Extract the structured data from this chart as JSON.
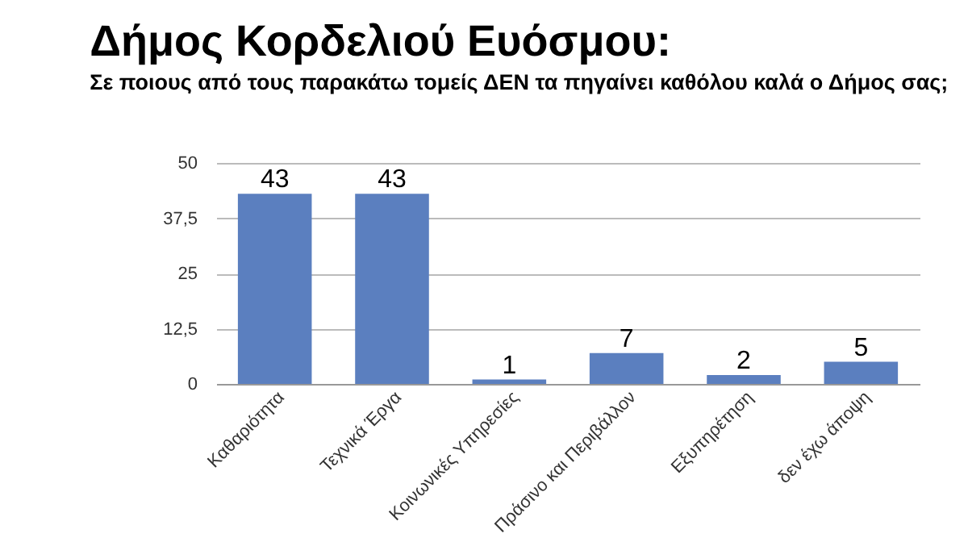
{
  "chart_data": {
    "type": "bar",
    "title": "Δήμος Κορδελιού Ευόσμου:",
    "subtitle": "Σε ποιους από τους παρακάτω τομείς ΔΕΝ τα πηγαίνει καθόλου καλά ο Δήμος σας;",
    "categories": [
      "Καθαριότητα",
      "Τεχνικά Έργα",
      "Κοινωνικές Υπηρεσίες",
      "Πράσινο και Περιβάλλον",
      "Εξυπηρέτηση",
      "δεν έχω άποψη"
    ],
    "values": [
      43,
      43,
      1,
      7,
      2,
      5
    ],
    "color": "#5b7fbf",
    "ylim": [
      0,
      50
    ],
    "yticks": [
      0,
      {
        "value": 12.5,
        "label": "12,5"
      },
      25,
      {
        "value": 37.5,
        "label": "37,5"
      },
      50
    ],
    "grid": "y",
    "data_labels": true
  }
}
